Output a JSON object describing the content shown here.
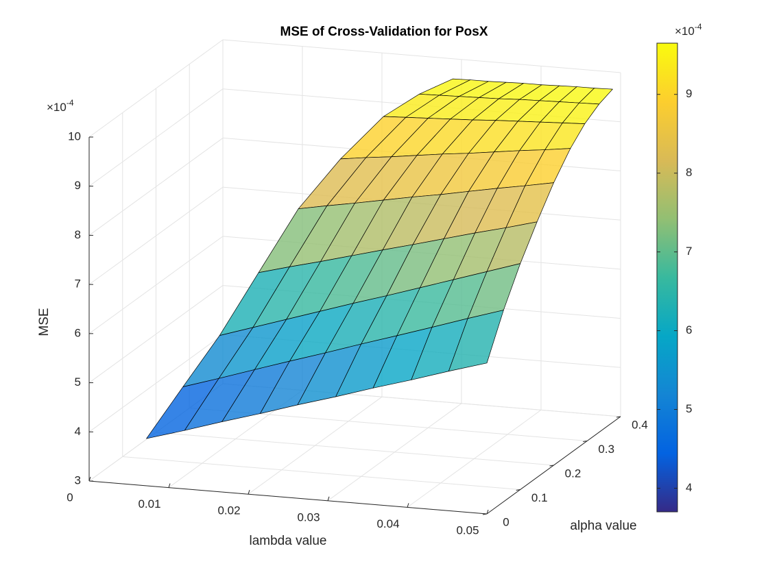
{
  "chart_data": {
    "type": "surface",
    "title": "MSE of Cross-Validation for PosX",
    "xlabel": "lambda value",
    "ylabel": "alpha value",
    "zlabel": "MSE",
    "x": [
      [
        0.0072,
        0.012,
        0.0167,
        0.0215,
        0.0262,
        0.031,
        0.0357,
        0.0405,
        0.0452,
        0.05
      ],
      [
        0.0097,
        0.0142,
        0.0187,
        0.0231,
        0.0276,
        0.0321,
        0.0366,
        0.041,
        0.0455,
        0.05
      ],
      [
        0.0122,
        0.0164,
        0.0206,
        0.0248,
        0.029,
        0.0332,
        0.0374,
        0.0416,
        0.0458,
        0.05
      ],
      [
        0.015,
        0.0189,
        0.0228,
        0.0267,
        0.0306,
        0.0344,
        0.0383,
        0.0422,
        0.0461,
        0.05
      ],
      [
        0.0179,
        0.0215,
        0.025,
        0.0286,
        0.0322,
        0.0358,
        0.0393,
        0.0429,
        0.0464,
        0.05
      ],
      [
        0.0211,
        0.0243,
        0.0275,
        0.0307,
        0.0339,
        0.0372,
        0.0404,
        0.0436,
        0.0468,
        0.05
      ],
      [
        0.0244,
        0.0272,
        0.03,
        0.0328,
        0.0356,
        0.0385,
        0.0413,
        0.0441,
        0.0469,
        0.0497
      ],
      [
        0.0268,
        0.0293,
        0.0318,
        0.0343,
        0.0368,
        0.0394,
        0.0419,
        0.0444,
        0.0469,
        0.0494
      ],
      [
        0.0289,
        0.0311,
        0.0334,
        0.0356,
        0.0378,
        0.0401,
        0.0423,
        0.0445,
        0.0467,
        0.049
      ]
    ],
    "y": [
      0,
      0.05,
      0.1,
      0.15,
      0.2,
      0.25,
      0.3,
      0.35,
      0.4
    ],
    "z": [
      [
        3.96,
        4.19,
        4.43,
        4.66,
        4.9,
        5.13,
        5.37,
        5.6,
        5.84,
        6.07
      ],
      [
        4.8,
        5.03,
        5.27,
        5.5,
        5.73,
        5.97,
        6.2,
        6.43,
        6.67,
        6.9
      ],
      [
        5.63,
        5.85,
        6.07,
        6.29,
        6.51,
        6.72,
        6.94,
        7.16,
        7.38,
        7.6
      ],
      [
        6.7,
        6.87,
        7.03,
        7.2,
        7.37,
        7.53,
        7.7,
        7.87,
        8.03,
        8.2
      ],
      [
        7.79,
        7.9,
        8.0,
        8.11,
        8.22,
        8.32,
        8.43,
        8.54,
        8.64,
        8.75
      ],
      [
        8.6,
        8.67,
        8.73,
        8.8,
        8.87,
        8.93,
        9.0,
        9.07,
        9.13,
        9.2
      ],
      [
        9.26,
        9.28,
        9.3,
        9.32,
        9.34,
        9.37,
        9.39,
        9.41,
        9.43,
        9.45
      ],
      [
        9.5,
        9.51,
        9.52,
        9.53,
        9.54,
        9.56,
        9.57,
        9.58,
        9.59,
        9.6
      ],
      [
        9.59,
        9.6,
        9.6,
        9.61,
        9.62,
        9.62,
        9.63,
        9.64,
        9.64,
        9.65
      ]
    ],
    "xlim": [
      0,
      0.05
    ],
    "ylim": [
      0,
      0.4
    ],
    "zlim": [
      3,
      10
    ],
    "xticks": [
      0,
      0.01,
      0.02,
      0.03,
      0.04,
      0.05
    ],
    "yticks": [
      0,
      0.1,
      0.2,
      0.3,
      0.4
    ],
    "zticks": [
      3,
      4,
      5,
      6,
      7,
      8,
      9,
      10
    ],
    "z_exponent": {
      "base": "×10",
      "exponent": "-4"
    },
    "grid": true,
    "colormap": "parula",
    "face_alpha": 0.8,
    "edge_color": "#000000",
    "colorbar": {
      "clim": [
        3.7,
        9.65
      ],
      "ticks": [
        4,
        5,
        6,
        7,
        8,
        9
      ],
      "exponent": {
        "base": "×10",
        "exponent": "-4"
      }
    }
  }
}
